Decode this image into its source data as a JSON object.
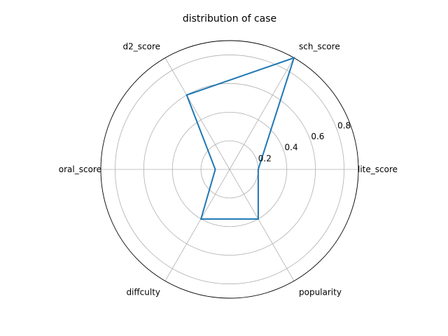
{
  "chart_data": {
    "type": "radar",
    "title": "distribution of case",
    "categories": [
      "lite_score",
      "sch_score",
      "d2_score",
      "oral_score",
      "diffculty",
      "popularity"
    ],
    "series": [
      {
        "values": [
          0.2,
          0.9,
          0.6,
          0.1,
          0.4,
          0.4
        ]
      }
    ],
    "radial_ticks": [
      0.2,
      0.4,
      0.6,
      0.8
    ],
    "radial_tick_labels": [
      "0.2",
      "0.4",
      "0.6",
      "0.8"
    ],
    "rlim": [
      0,
      0.9
    ],
    "grid": true,
    "colors": {
      "series": "#1f77b4",
      "grid": "#b0b0b0",
      "frame": "#000000"
    }
  }
}
